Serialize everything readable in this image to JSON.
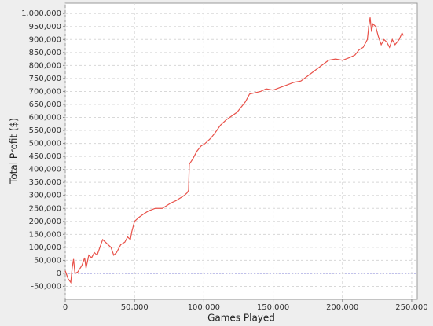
{
  "chart_data": {
    "type": "line",
    "xlabel": "Games Played",
    "ylabel": "Total Profit ($)",
    "color": "#e8524a",
    "grid": true,
    "x": [
      0,
      2000,
      4000,
      5000,
      6000,
      7000,
      9000,
      12000,
      14000,
      15000,
      17000,
      19000,
      21000,
      23000,
      25000,
      27000,
      29000,
      31000,
      33000,
      35000,
      37000,
      40000,
      43000,
      45000,
      47000,
      48000,
      50000,
      53000,
      57000,
      60000,
      65000,
      70000,
      73000,
      76000,
      80000,
      83000,
      86000,
      88000,
      89000,
      89500,
      92000,
      95000,
      98000,
      101000,
      105000,
      108000,
      112000,
      116000,
      120000,
      124000,
      127000,
      130000,
      133000,
      137000,
      141000,
      145000,
      150000,
      155000,
      160000,
      165000,
      170000,
      175000,
      180000,
      185000,
      190000,
      195000,
      200000,
      205000,
      209000,
      212000,
      215000,
      218000,
      219000,
      220000,
      221000,
      222000,
      224000,
      226000,
      228000,
      230000,
      232000,
      234000,
      236000,
      238000,
      241000,
      243000,
      244000
    ],
    "values": [
      10000,
      -20000,
      -35000,
      20000,
      55000,
      0,
      5000,
      30000,
      60000,
      20000,
      70000,
      60000,
      80000,
      70000,
      100000,
      130000,
      120000,
      110000,
      100000,
      70000,
      80000,
      110000,
      120000,
      140000,
      130000,
      160000,
      200000,
      215000,
      230000,
      240000,
      250000,
      250000,
      260000,
      270000,
      280000,
      290000,
      300000,
      310000,
      320000,
      420000,
      440000,
      470000,
      490000,
      500000,
      520000,
      540000,
      570000,
      590000,
      605000,
      620000,
      640000,
      660000,
      690000,
      695000,
      700000,
      710000,
      705000,
      715000,
      725000,
      735000,
      740000,
      760000,
      780000,
      800000,
      820000,
      825000,
      820000,
      830000,
      840000,
      860000,
      870000,
      900000,
      950000,
      985000,
      930000,
      960000,
      950000,
      910000,
      880000,
      900000,
      890000,
      870000,
      900000,
      880000,
      900000,
      925000,
      915000
    ],
    "xlim": [
      0,
      254000
    ],
    "xticks": [
      0,
      {
        "value": 50000,
        "label": "50,000"
      },
      {
        "value": 100000,
        "label": "100,000"
      },
      {
        "value": 150000,
        "label": "150,000"
      },
      {
        "value": 200000,
        "label": "200,000"
      },
      {
        "value": 250000,
        "label": "250,000"
      }
    ],
    "ylim": [
      -100000,
      1040000
    ],
    "yticks": [
      {
        "value": -50000,
        "label": "-50,000"
      },
      0,
      {
        "value": 50000,
        "label": "50,000"
      },
      {
        "value": 100000,
        "label": "100,000"
      },
      {
        "value": 150000,
        "label": "150,000"
      },
      {
        "value": 200000,
        "label": "200,000"
      },
      {
        "value": 250000,
        "label": "250,000"
      },
      {
        "value": 300000,
        "label": "300,000"
      },
      {
        "value": 350000,
        "label": "350,000"
      },
      {
        "value": 400000,
        "label": "400,000"
      },
      {
        "value": 450000,
        "label": "450,000"
      },
      {
        "value": 500000,
        "label": "500,000"
      },
      {
        "value": 550000,
        "label": "550,000"
      },
      {
        "value": 600000,
        "label": "600,000"
      },
      {
        "value": 650000,
        "label": "650,000"
      },
      {
        "value": 700000,
        "label": "700,000"
      },
      {
        "value": 750000,
        "label": "750,000"
      },
      {
        "value": 800000,
        "label": "800,000"
      },
      {
        "value": 850000,
        "label": "850,000"
      },
      {
        "value": 900000,
        "label": "900,000"
      },
      {
        "value": 950000,
        "label": "950,000"
      },
      {
        "value": 1000000,
        "label": "1,000,000"
      }
    ]
  }
}
